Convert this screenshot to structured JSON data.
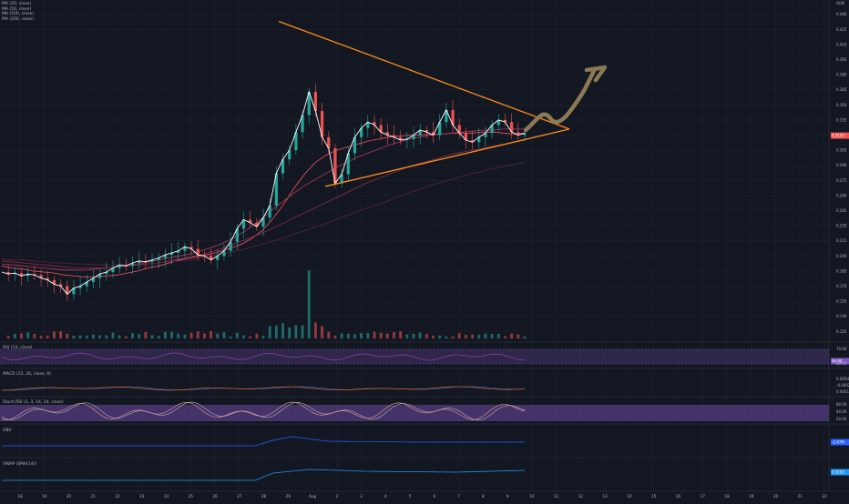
{
  "chart_data": {
    "type": "line",
    "currency": "AUD",
    "price_axis_ticks": [
      "0.440",
      "0.425",
      "0.410",
      "0.395",
      "0.380",
      "0.365",
      "0.350",
      "0.335",
      "0.320",
      "0.305",
      "0.290",
      "0.275",
      "0.260",
      "0.245",
      "0.230",
      "0.215",
      "0.200",
      "0.185",
      "0.170",
      "0.155",
      "0.140",
      "0.125"
    ],
    "price_range": [
      0.118,
      0.447
    ],
    "x_tick_labels": [
      "18",
      "19",
      "20",
      "21",
      "22",
      "23",
      "24",
      "25",
      "26",
      "27",
      "28",
      "29",
      "Aug",
      "2",
      "3",
      "4",
      "5",
      "6",
      "7",
      "8",
      "9",
      "10",
      "11",
      "12",
      "13",
      "14",
      "15",
      "16",
      "17",
      "18",
      "19",
      "20",
      "21",
      "22"
    ],
    "series_price": [
      0.184,
      0.182,
      0.183,
      0.18,
      0.182,
      0.181,
      0.178,
      0.176,
      0.172,
      0.17,
      0.162,
      0.168,
      0.17,
      0.174,
      0.178,
      0.182,
      0.184,
      0.188,
      0.191,
      0.19,
      0.193,
      0.195,
      0.194,
      0.196,
      0.198,
      0.201,
      0.203,
      0.205,
      0.209,
      0.207,
      0.201,
      0.2,
      0.196,
      0.2,
      0.205,
      0.214,
      0.227,
      0.236,
      0.233,
      0.229,
      0.238,
      0.25,
      0.282,
      0.296,
      0.305,
      0.323,
      0.34,
      0.363,
      0.344,
      0.318,
      0.307,
      0.272,
      0.281,
      0.302,
      0.318,
      0.327,
      0.333,
      0.33,
      0.323,
      0.32,
      0.318,
      0.315,
      0.316,
      0.32,
      0.325,
      0.323,
      0.32,
      0.333,
      0.345,
      0.33,
      0.322,
      0.315,
      0.313,
      0.318,
      0.322,
      0.33,
      0.335,
      0.333,
      0.323,
      0.32,
      0.322
    ],
    "ma_lines": [
      {
        "name": "MA (20, close)",
        "color": "#f7525f",
        "values": [
          0.19,
          0.188,
          0.187,
          0.185,
          0.184,
          0.183,
          0.181,
          0.18,
          0.179,
          0.179,
          0.18,
          0.181,
          0.183,
          0.185,
          0.188,
          0.19,
          0.193,
          0.196,
          0.198,
          0.2,
          0.202,
          0.205,
          0.208,
          0.212,
          0.218,
          0.226,
          0.238,
          0.252,
          0.268,
          0.282,
          0.293,
          0.3,
          0.305,
          0.308,
          0.311,
          0.314,
          0.316,
          0.318,
          0.319,
          0.32,
          0.32,
          0.321,
          0.321,
          0.322,
          0.322,
          0.322,
          0.323,
          0.323,
          0.322,
          0.321,
          0.322
        ]
      },
      {
        "name": "MA (50, close)",
        "color": "#b23c5e",
        "values": [
          0.192,
          0.191,
          0.19,
          0.189,
          0.188,
          0.187,
          0.186,
          0.186,
          0.186,
          0.187,
          0.188,
          0.189,
          0.19,
          0.192,
          0.194,
          0.196,
          0.198,
          0.2,
          0.202,
          0.205,
          0.208,
          0.212,
          0.217,
          0.223,
          0.23,
          0.238,
          0.247,
          0.255,
          0.263,
          0.27,
          0.276,
          0.282,
          0.288,
          0.293,
          0.298,
          0.302,
          0.306,
          0.31,
          0.313,
          0.316,
          0.318,
          0.32,
          0.321,
          0.322,
          0.323,
          0.324,
          0.325,
          0.325,
          0.326,
          0.326,
          0.326
        ]
      },
      {
        "name": "MA (100, close)",
        "color": "#8e2d4a",
        "values": [
          0.195,
          0.194,
          0.193,
          0.192,
          0.191,
          0.19,
          0.189,
          0.188,
          0.188,
          0.188,
          0.188,
          0.189,
          0.19,
          0.191,
          0.192,
          0.193,
          0.195,
          0.197,
          0.199,
          0.201,
          0.204,
          0.207,
          0.211,
          0.215,
          0.219,
          0.223,
          0.228,
          0.233,
          0.238,
          0.243,
          0.248,
          0.253,
          0.258,
          0.263,
          0.268,
          0.273,
          0.277,
          0.281,
          0.285,
          0.289,
          0.292,
          0.295,
          0.298,
          0.301,
          0.303,
          0.305,
          0.307,
          0.309,
          0.311,
          0.313,
          0.315
        ]
      },
      {
        "name": "MA (200, close)",
        "color": "#5c2338",
        "values": [
          0.197,
          0.196,
          0.196,
          0.195,
          0.194,
          0.193,
          0.193,
          0.192,
          0.192,
          0.191,
          0.191,
          0.191,
          0.191,
          0.192,
          0.192,
          0.193,
          0.194,
          0.195,
          0.196,
          0.198,
          0.2,
          0.202,
          0.204,
          0.206,
          0.209,
          0.212,
          0.215,
          0.218,
          0.222,
          0.225,
          0.229,
          0.232,
          0.236,
          0.24,
          0.244,
          0.248,
          0.251,
          0.255,
          0.259,
          0.263,
          0.266,
          0.27,
          0.273,
          0.276,
          0.279,
          0.282,
          0.284,
          0.287,
          0.289,
          0.291,
          0.293
        ]
      }
    ],
    "last_price": "0.3195",
    "indicators": [
      {
        "name": "RSI (14, close)",
        "value": "46.88",
        "bands": [
          "70.00",
          "30.00"
        ]
      },
      {
        "name": "MACD (12, 26, close, 9)",
        "values": [
          "0.0054",
          "-0.0002",
          "0.0041"
        ]
      },
      {
        "name": "Stoch RSI (3, 3, 14, 14, close)",
        "values": [
          "80.00",
          "40.00",
          "20.00"
        ]
      },
      {
        "name": "OBV",
        "value": "-2.47M"
      },
      {
        "name": "VWAP (SMA(14))",
        "value": "0.3193"
      }
    ],
    "annotations": [
      "symmetrical triangle",
      "projected breakout arrow"
    ]
  }
}
